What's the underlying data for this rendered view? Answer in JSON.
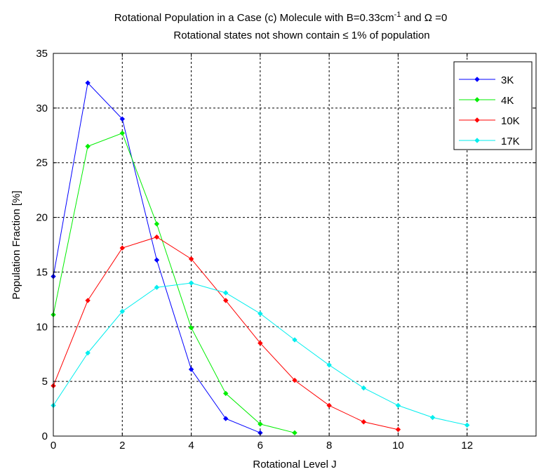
{
  "chart_data": {
    "type": "line",
    "title": {
      "line1_main": "Rotational Population in a Case (c) Molecule with B=0.33cm",
      "line1_sup": "-1",
      "line1_tail": " and Ω =0",
      "line2": "Rotational states not shown contain ≤ 1% of population"
    },
    "xlabel": "Rotational Level J",
    "ylabel": "Population Fraction [%]",
    "xlim": [
      0,
      14
    ],
    "ylim": [
      0,
      35
    ],
    "xticks": [
      0,
      2,
      4,
      6,
      8,
      10,
      12
    ],
    "yticks": [
      0,
      5,
      10,
      15,
      20,
      25,
      30,
      35
    ],
    "grid": true,
    "legend_position": "top-right",
    "series": [
      {
        "name": "3K",
        "color": "#0000ff",
        "x": [
          0,
          1,
          2,
          3,
          4,
          5,
          6
        ],
        "y": [
          14.6,
          32.3,
          29.0,
          16.1,
          6.1,
          1.6,
          0.3
        ]
      },
      {
        "name": "4K",
        "color": "#00ee00",
        "x": [
          0,
          1,
          2,
          3,
          4,
          5,
          6,
          7
        ],
        "y": [
          11.1,
          26.5,
          27.7,
          19.4,
          9.9,
          3.9,
          1.1,
          0.3
        ]
      },
      {
        "name": "10K",
        "color": "#ff0000",
        "x": [
          0,
          1,
          2,
          3,
          4,
          5,
          6,
          7,
          8,
          9,
          10
        ],
        "y": [
          4.6,
          12.4,
          17.2,
          18.2,
          16.2,
          12.4,
          8.5,
          5.1,
          2.8,
          1.3,
          0.6
        ]
      },
      {
        "name": "17K",
        "color": "#00eeee",
        "x": [
          0,
          1,
          2,
          3,
          4,
          5,
          6,
          7,
          8,
          9,
          10,
          11,
          12
        ],
        "y": [
          2.8,
          7.6,
          11.4,
          13.6,
          14.0,
          13.1,
          11.2,
          8.8,
          6.5,
          4.4,
          2.8,
          1.7,
          1.0
        ]
      }
    ]
  }
}
